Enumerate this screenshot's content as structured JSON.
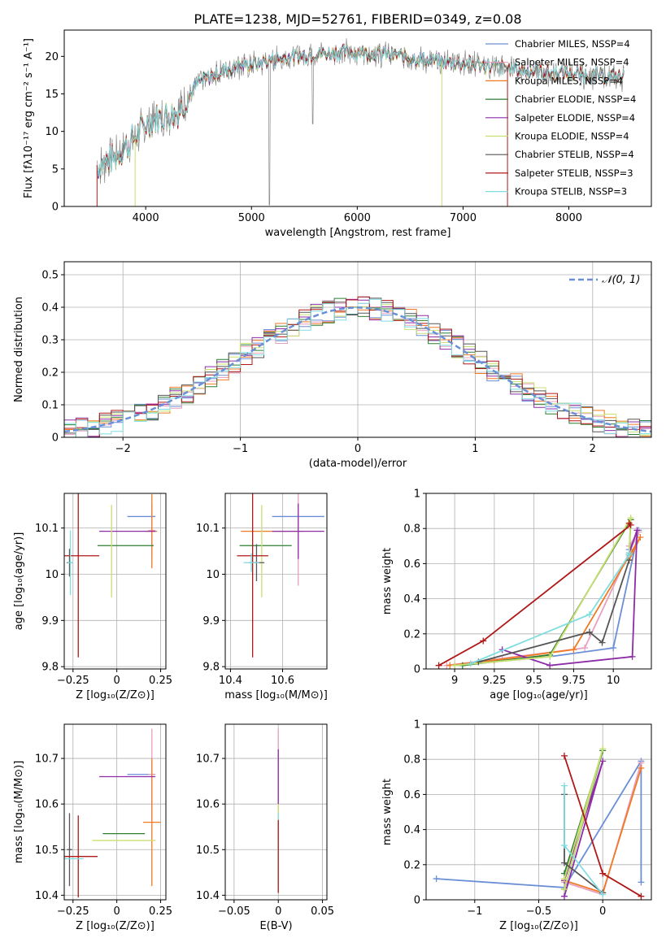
{
  "figure_title": "PLATE=1238, MJD=52761, FIBERID=0349, z=0.08",
  "chart_data": [
    {
      "id": "spectrum",
      "type": "line",
      "xlabel": "wavelength [Angstrom, rest frame]",
      "ylabel": "Flux [fλ10⁻¹⁷ erg cm⁻² s⁻¹ A⁻¹]",
      "xlim": [
        3230,
        8780
      ],
      "ylim": [
        0,
        23.5
      ],
      "xticks": [
        4000,
        5000,
        6000,
        7000,
        8000
      ],
      "yticks": [
        0,
        5,
        10,
        15,
        20
      ],
      "grid": false,
      "legend_position": "top-right",
      "series": [
        {
          "name": "Chabrier MILES, N_SSP=4",
          "color": "#6a8fd6"
        },
        {
          "name": "Salpeter MILES, N_SSP=4",
          "color": "#e8a0c0"
        },
        {
          "name": "Kroupa MILES, N_SSP=4",
          "color": "#f07a24"
        },
        {
          "name": "Chabrier ELODIE, N_SSP=4",
          "color": "#2e7d32"
        },
        {
          "name": "Salpeter ELODIE, N_SSP=4",
          "color": "#8e2ca8"
        },
        {
          "name": "Kroupa ELODIE, N_SSP=4",
          "color": "#c8e070"
        },
        {
          "name": "Chabrier STELIB, N_SSP=4",
          "color": "#555555"
        },
        {
          "name": "Salpeter STELIB, N_SSP=3",
          "color": "#b01818"
        },
        {
          "name": "Kroupa STELIB, N_SSP=3",
          "color": "#7fdde0"
        }
      ],
      "continuum": {
        "x": [
          3550,
          3700,
          3850,
          4000,
          4150,
          4300,
          4500,
          4700,
          4900,
          5100,
          5300,
          5500,
          5700,
          5900,
          6100,
          6300,
          6500,
          6700,
          6900,
          7100,
          7300,
          7500,
          7700,
          7900,
          8100,
          8300,
          8500
        ],
        "y": [
          5.5,
          6.5,
          8.5,
          11,
          12,
          12.5,
          16.5,
          18,
          18.8,
          19.2,
          19.8,
          20.2,
          20.4,
          20.6,
          20.5,
          20.2,
          19.8,
          19.4,
          19.2,
          19.0,
          18.6,
          18.3,
          18.0,
          17.8,
          17.6,
          17.4,
          17.2
        ]
      }
    },
    {
      "id": "residuals",
      "type": "line",
      "xlabel": "(data-model)/error",
      "ylabel": "Normed distribution",
      "xlim": [
        -2.5,
        2.5
      ],
      "ylim": [
        0,
        0.54
      ],
      "xticks": [
        -2,
        -1,
        0,
        1,
        2
      ],
      "yticks": [
        0.0,
        0.1,
        0.2,
        0.3,
        0.4,
        0.5
      ],
      "grid": true,
      "legend_position": "top-right",
      "reference": {
        "name": "𝒩(0, 1)",
        "color": "#6a8fd6",
        "dashed": true,
        "mean": 0,
        "sigma": 1
      },
      "hist_bin_width": 0.1
    },
    {
      "id": "age-vs-Z",
      "type": "scatter",
      "xlabel": "Z [log₁₀(Z/Z⊙)]",
      "ylabel": "age  [log₁₀(age/yr)]",
      "xlim": [
        -0.3,
        0.28
      ],
      "ylim": [
        9.795,
        10.175
      ],
      "xticks": [
        -0.25,
        0.0,
        0.25
      ],
      "yticks": [
        9.8,
        9.9,
        10.0,
        10.1
      ],
      "grid": true,
      "points": [
        {
          "x": 0.14,
          "y": 10.125,
          "xerr": 0.08,
          "yerr": 0.0,
          "color": "#6a8fd6"
        },
        {
          "x": 0.2,
          "y": 10.095,
          "xerr": 0.02,
          "yerr": 0.06,
          "color": "#e8a0c0"
        },
        {
          "x": 0.2,
          "y": 10.093,
          "xerr": 0.03,
          "yerr": 0.08,
          "color": "#f07a24"
        },
        {
          "x": 0.05,
          "y": 10.062,
          "xerr": 0.16,
          "yerr": 0.0,
          "color": "#2e7d32"
        },
        {
          "x": 0.06,
          "y": 10.093,
          "xerr": 0.16,
          "yerr": 0.0,
          "color": "#8e2ca8"
        },
        {
          "x": -0.03,
          "y": 10.05,
          "xerr": 0.0,
          "yerr": 0.1,
          "color": "#c8e070"
        },
        {
          "x": -0.27,
          "y": 10.025,
          "xerr": 0.015,
          "yerr": 0.03,
          "color": "#555555"
        },
        {
          "x": -0.22,
          "y": 10.04,
          "xerr": 0.12,
          "yerr": 0.22,
          "color": "#b01818"
        },
        {
          "x": -0.265,
          "y": 10.025,
          "xerr": 0.015,
          "yerr": 0.07,
          "color": "#7fdde0"
        }
      ]
    },
    {
      "id": "age-vs-mass",
      "type": "scatter",
      "xlabel": "mass [log₁₀(M/M⊙)]",
      "ylabel": "",
      "xlim": [
        10.38,
        10.77
      ],
      "ylim": [
        9.795,
        10.175
      ],
      "xticks": [
        10.4,
        10.6
      ],
      "yticks": [
        9.8,
        9.9,
        10.0,
        10.1
      ],
      "grid": true,
      "points": [
        {
          "x": 10.66,
          "y": 10.125,
          "xerr": 0.1,
          "yerr": 0.0,
          "color": "#6a8fd6"
        },
        {
          "x": 10.66,
          "y": 10.095,
          "xerr": 0.0,
          "yerr": 0.12,
          "color": "#e8a0c0"
        },
        {
          "x": 10.56,
          "y": 10.093,
          "xerr": 0.12,
          "yerr": 0.0,
          "color": "#f07a24"
        },
        {
          "x": 10.535,
          "y": 10.062,
          "xerr": 0.1,
          "yerr": 0.0,
          "color": "#2e7d32"
        },
        {
          "x": 10.66,
          "y": 10.093,
          "xerr": 0.1,
          "yerr": 0.06,
          "color": "#8e2ca8"
        },
        {
          "x": 10.52,
          "y": 10.05,
          "xerr": 0.0,
          "yerr": 0.1,
          "color": "#c8e070"
        },
        {
          "x": 10.5,
          "y": 10.025,
          "xerr": 0.03,
          "yerr": 0.04,
          "color": "#555555"
        },
        {
          "x": 10.485,
          "y": 10.04,
          "xerr": 0.06,
          "yerr": 0.22,
          "color": "#b01818"
        },
        {
          "x": 10.48,
          "y": 10.025,
          "xerr": 0.03,
          "yerr": 0.02,
          "color": "#7fdde0"
        }
      ]
    },
    {
      "id": "weight-vs-age",
      "type": "line",
      "xlabel": "age  [log₁₀(age/yr)]",
      "ylabel": "mass weight",
      "xlim": [
        8.82,
        10.24
      ],
      "ylim": [
        0,
        1
      ],
      "xticks": [
        9.0,
        9.25,
        9.5,
        9.75,
        10.0
      ],
      "yticks": [
        0.0,
        0.2,
        0.4,
        0.6,
        0.8,
        1.0
      ],
      "grid": true,
      "series": [
        {
          "color": "#6a8fd6",
          "x": [
            9.0,
            9.6,
            10.0,
            10.16,
            10.1
          ],
          "y": [
            0.02,
            0.07,
            0.12,
            0.79,
            0.68
          ]
        },
        {
          "color": "#e8a0c0",
          "x": [
            8.95,
            9.3,
            9.82,
            10.16,
            10.1
          ],
          "y": [
            0.02,
            0.06,
            0.12,
            0.78,
            0.7
          ]
        },
        {
          "color": "#f07a24",
          "x": [
            8.97,
            9.25,
            9.75,
            10.17,
            10.1
          ],
          "y": [
            0.02,
            0.05,
            0.11,
            0.75,
            0.62
          ]
        },
        {
          "color": "#2e7d32",
          "x": [
            9.05,
            9.6,
            10.11,
            10.1
          ],
          "y": [
            0.02,
            0.08,
            0.85,
            0.65
          ]
        },
        {
          "color": "#8e2ca8",
          "x": [
            9.3,
            9.6,
            10.12,
            10.15,
            10.1
          ],
          "y": [
            0.11,
            0.02,
            0.07,
            0.79,
            0.66
          ]
        },
        {
          "color": "#c8e070",
          "x": [
            9.0,
            9.6,
            10.11,
            10.1
          ],
          "y": [
            0.02,
            0.07,
            0.86,
            0.66
          ]
        },
        {
          "color": "#555555",
          "x": [
            9.15,
            9.85,
            9.93,
            10.1
          ],
          "y": [
            0.04,
            0.21,
            0.15,
            0.62
          ]
        },
        {
          "color": "#b01818",
          "x": [
            8.9,
            9.18,
            10.11,
            10.1
          ],
          "y": [
            0.02,
            0.16,
            0.82,
            0.83
          ]
        },
        {
          "color": "#7fdde0",
          "x": [
            9.1,
            9.85,
            10.1,
            10.1
          ],
          "y": [
            0.03,
            0.31,
            0.65,
            0.66
          ]
        }
      ]
    },
    {
      "id": "mass-vs-Z",
      "type": "scatter",
      "xlabel": "Z [log₁₀(Z/Z⊙)]",
      "ylabel": "mass [log₁₀(M/M⊙)]",
      "xlim": [
        -0.3,
        0.28
      ],
      "ylim": [
        10.39,
        10.775
      ],
      "xticks": [
        -0.25,
        0.0,
        0.25
      ],
      "yticks": [
        10.4,
        10.5,
        10.6,
        10.7
      ],
      "grid": true,
      "points": [
        {
          "x": 0.14,
          "y": 10.665,
          "xerr": 0.08,
          "yerr": 0.0,
          "color": "#6a8fd6"
        },
        {
          "x": 0.2,
          "y": 10.665,
          "xerr": 0.02,
          "yerr": 0.1,
          "color": "#e8a0c0"
        },
        {
          "x": 0.2,
          "y": 10.56,
          "xerr": 0.05,
          "yerr": 0.14,
          "color": "#f07a24"
        },
        {
          "x": 0.04,
          "y": 10.535,
          "xerr": 0.12,
          "yerr": 0.0,
          "color": "#2e7d32"
        },
        {
          "x": 0.06,
          "y": 10.66,
          "xerr": 0.16,
          "yerr": 0.0,
          "color": "#8e2ca8"
        },
        {
          "x": 0.04,
          "y": 10.52,
          "xerr": 0.18,
          "yerr": 0.0,
          "color": "#c8e070"
        },
        {
          "x": -0.27,
          "y": 10.5,
          "xerr": 0.015,
          "yerr": 0.08,
          "color": "#555555"
        },
        {
          "x": -0.22,
          "y": 10.485,
          "xerr": 0.11,
          "yerr": 0.09,
          "color": "#b01818"
        },
        {
          "x": -0.25,
          "y": 10.48,
          "xerr": 0.06,
          "yerr": 0.0,
          "color": "#7fdde0"
        }
      ]
    },
    {
      "id": "mass-vs-EBV",
      "type": "scatter",
      "xlabel": "E(B-V)",
      "ylabel": "",
      "xlim": [
        -0.06,
        0.055
      ],
      "ylim": [
        10.39,
        10.775
      ],
      "xticks": [
        -0.05,
        0.0,
        0.05
      ],
      "yticks": [
        10.4,
        10.5,
        10.6,
        10.7
      ],
      "grid": true,
      "points": [
        {
          "x": 0.0,
          "y": 10.665,
          "xerr": 0.0,
          "yerr": 0.1,
          "color": "#e8a0c0"
        },
        {
          "x": 0.0,
          "y": 10.66,
          "xerr": 0.0,
          "yerr": 0.06,
          "color": "#8e2ca8"
        },
        {
          "x": 0.0,
          "y": 10.56,
          "xerr": 0.0,
          "yerr": 0.04,
          "color": "#c8e070"
        },
        {
          "x": 0.0,
          "y": 10.5,
          "xerr": 0.0,
          "yerr": 0.08,
          "color": "#7fdde0"
        },
        {
          "x": 0.0,
          "y": 10.485,
          "xerr": 0.0,
          "yerr": 0.08,
          "color": "#b01818"
        }
      ]
    },
    {
      "id": "weight-vs-Z",
      "type": "line",
      "xlabel": "Z [log₁₀(Z/Z⊙)]",
      "ylabel": "mass weight",
      "xlim": [
        -1.38,
        0.38
      ],
      "ylim": [
        0,
        1
      ],
      "xticks": [
        -1.0,
        -0.5,
        0.0
      ],
      "yticks": [
        0.0,
        0.2,
        0.4,
        0.6,
        0.8,
        1.0
      ],
      "grid": true,
      "series": [
        {
          "color": "#6a8fd6",
          "x": [
            -1.3,
            -0.3,
            0.3,
            0.3
          ],
          "y": [
            0.12,
            0.07,
            0.79,
            0.1
          ]
        },
        {
          "color": "#e8a0c0",
          "x": [
            -0.3,
            0.0,
            0.3
          ],
          "y": [
            0.1,
            0.03,
            0.78
          ]
        },
        {
          "color": "#f07a24",
          "x": [
            -0.3,
            0.0,
            0.3
          ],
          "y": [
            0.11,
            0.04,
            0.75
          ]
        },
        {
          "color": "#2e7d32",
          "x": [
            -0.3,
            0.0,
            -0.3
          ],
          "y": [
            0.15,
            0.85,
            0.06
          ]
        },
        {
          "color": "#8e2ca8",
          "x": [
            -0.3,
            0.0,
            -0.3
          ],
          "y": [
            0.11,
            0.79,
            0.02
          ]
        },
        {
          "color": "#c8e070",
          "x": [
            -0.3,
            0.0,
            -0.3
          ],
          "y": [
            0.12,
            0.86,
            0.06
          ]
        },
        {
          "color": "#555555",
          "x": [
            -0.3,
            -0.3,
            0.0
          ],
          "y": [
            0.6,
            0.21,
            0.04
          ]
        },
        {
          "color": "#b01818",
          "x": [
            -0.3,
            0.0,
            0.3
          ],
          "y": [
            0.82,
            0.15,
            0.02
          ]
        },
        {
          "color": "#7fdde0",
          "x": [
            -0.3,
            -0.3,
            0.0
          ],
          "y": [
            0.65,
            0.31,
            0.03
          ]
        }
      ]
    }
  ]
}
